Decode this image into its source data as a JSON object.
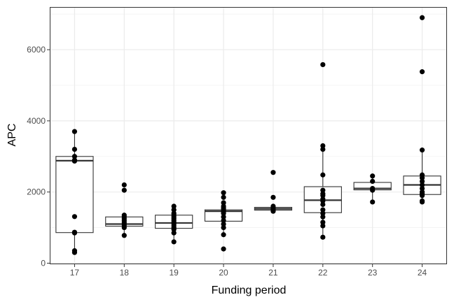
{
  "chart_data": {
    "type": "boxplot",
    "xlabel": "Funding period",
    "ylabel": "APC",
    "categories": [
      "17",
      "18",
      "19",
      "20",
      "21",
      "22",
      "23",
      "24"
    ],
    "ylim": [
      -30,
      7200
    ],
    "yticks": [
      0,
      2000,
      4000,
      6000
    ],
    "ytick_labels": [
      "0",
      "2000",
      "4000",
      "6000"
    ],
    "grid": true,
    "boxes": [
      {
        "category": "17",
        "q1": 860,
        "median": 2880,
        "q3": 3000,
        "whisker_low": 300,
        "whisker_high": 3700
      },
      {
        "category": "18",
        "q1": 1040,
        "median": 1100,
        "q3": 1300,
        "whisker_low": 780,
        "whisker_high": 1350
      },
      {
        "category": "19",
        "q1": 980,
        "median": 1130,
        "q3": 1350,
        "whisker_low": 590,
        "whisker_high": 1600
      },
      {
        "category": "20",
        "q1": 1180,
        "median": 1460,
        "q3": 1500,
        "whisker_low": 780,
        "whisker_high": 1700
      },
      {
        "category": "21",
        "q1": 1490,
        "median": 1530,
        "q3": 1570,
        "whisker_low": 1460,
        "whisker_high": 1600
      },
      {
        "category": "22",
        "q1": 1420,
        "median": 1770,
        "q3": 2150,
        "whisker_low": 730,
        "whisker_high": 3220
      },
      {
        "category": "23",
        "q1": 2060,
        "median": 2100,
        "q3": 2270,
        "whisker_low": 1720,
        "whisker_high": 2450
      },
      {
        "category": "24",
        "q1": 1930,
        "median": 2200,
        "q3": 2450,
        "whisker_low": 1720,
        "whisker_high": 3180
      }
    ],
    "points": [
      {
        "category": "17",
        "values": [
          3700,
          3200,
          3000,
          2900,
          2870,
          1310,
          870,
          850,
          350,
          300
        ]
      },
      {
        "category": "18",
        "values": [
          2200,
          2050,
          1350,
          1300,
          1250,
          1200,
          1150,
          1100,
          1050,
          1000,
          780
        ]
      },
      {
        "category": "19",
        "values": [
          1600,
          1500,
          1400,
          1350,
          1300,
          1250,
          1200,
          1150,
          1100,
          1050,
          1000,
          950,
          850,
          600
        ]
      },
      {
        "category": "20",
        "values": [
          1980,
          1850,
          1700,
          1600,
          1550,
          1500,
          1450,
          1400,
          1300,
          1200,
          1100,
          1000,
          800,
          400
        ]
      },
      {
        "category": "21",
        "values": [
          2550,
          1850,
          1600,
          1550,
          1500,
          1460
        ]
      },
      {
        "category": "22",
        "values": [
          5580,
          3300,
          3200,
          2480,
          2050,
          1950,
          1900,
          1800,
          1750,
          1650,
          1500,
          1400,
          1300,
          1150,
          1050,
          730
        ]
      },
      {
        "category": "23",
        "values": [
          2450,
          2300,
          2100,
          2050,
          1720
        ]
      },
      {
        "category": "24",
        "values": [
          6900,
          5380,
          3180,
          2480,
          2400,
          2300,
          2200,
          2100,
          2000,
          1950,
          1900,
          1750,
          1720
        ]
      }
    ]
  }
}
